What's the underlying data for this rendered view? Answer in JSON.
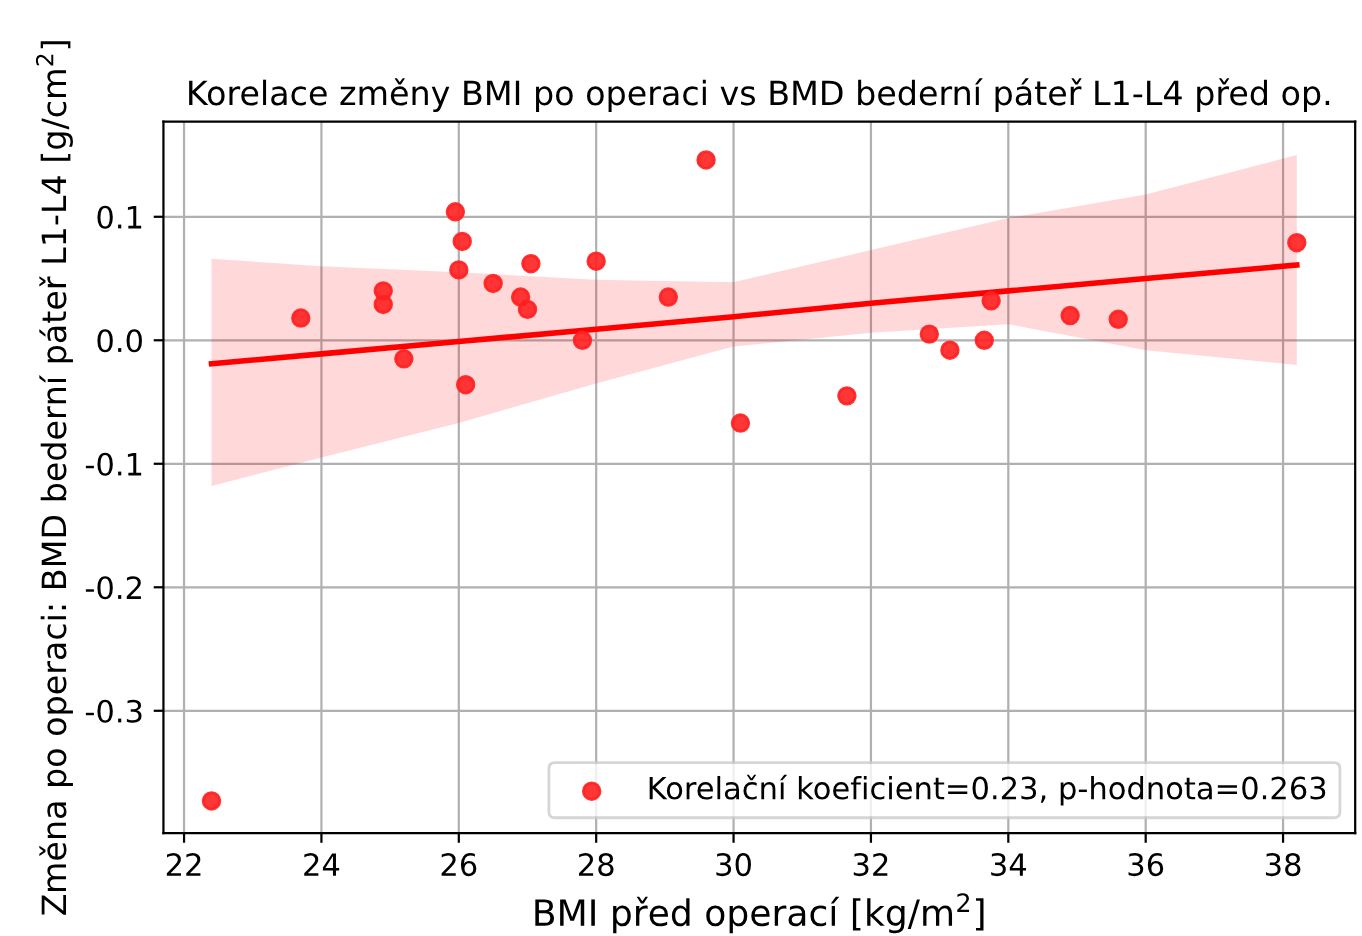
{
  "chart_data": {
    "type": "scatter",
    "title": "Korelace změny BMI po operaci vs BMD bederní páteř L1-L4 před op.",
    "xlabel": "BMI před operací [kg/m$^{2}$]",
    "ylabel": "Změna po operaci: BMD bederní páteř L1-L4 [g/cm$^{2}$]",
    "xlim": [
      21.7,
      39.05
    ],
    "ylim": [
      -0.399,
      0.177
    ],
    "xticks": [
      22,
      24,
      26,
      28,
      30,
      32,
      34,
      36,
      38
    ],
    "yticks": [
      -0.3,
      -0.2,
      -0.1,
      {
        "value": 0,
        "label": "0.0"
      },
      0.1
    ],
    "grid": true,
    "legend": "lower right",
    "series": [
      {
        "name": "Korelační koeficient=0.23, p-hodnota=0.263",
        "marker": "circle",
        "color": "#ff2020",
        "x": [
          22.4,
          23.7,
          24.9,
          24.9,
          25.2,
          25.95,
          26.0,
          26.05,
          26.1,
          26.5,
          26.9,
          27.0,
          27.05,
          27.8,
          28.0,
          29.05,
          29.6,
          30.1,
          31.65,
          32.85,
          33.15,
          33.65,
          33.75,
          34.9,
          35.6,
          38.2
        ],
        "values": [
          -0.373,
          0.018,
          0.04,
          0.029,
          -0.015,
          0.104,
          0.057,
          0.08,
          -0.036,
          0.046,
          0.035,
          0.025,
          0.062,
          0.0,
          0.064,
          0.035,
          0.146,
          -0.067,
          -0.045,
          0.005,
          -0.008,
          0.0,
          0.032,
          0.02,
          0.017,
          0.079
        ]
      },
      {
        "type": "line",
        "color": "#ff0000",
        "line_style": "solid",
        "x": [
          22.4,
          24,
          26,
          28,
          30,
          32,
          34,
          36,
          38.2
        ],
        "values": [
          -0.019,
          -0.011,
          -0.001,
          0.009,
          0.019,
          0.03,
          0.04,
          0.05,
          0.061
        ],
        "lower": [
          -0.118,
          -0.095,
          -0.067,
          -0.035,
          -0.005,
          0.006,
          0.013,
          -0.008,
          -0.02
        ],
        "upper": [
          0.066,
          0.06,
          0.055,
          0.049,
          0.047,
          0.073,
          0.099,
          0.118,
          0.15
        ]
      }
    ]
  }
}
